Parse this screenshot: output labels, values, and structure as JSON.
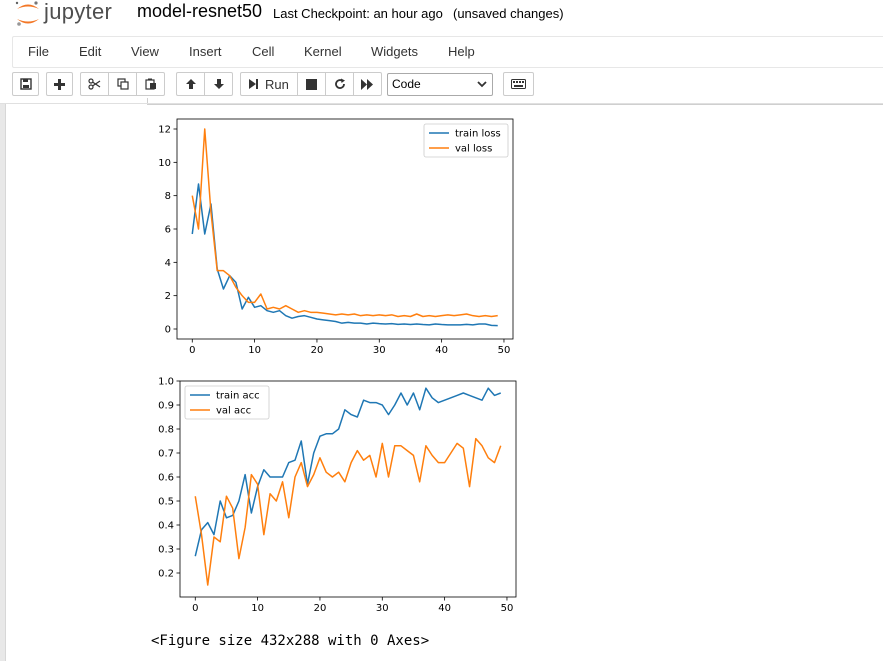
{
  "header": {
    "logo_text": "jupyter",
    "notebook_name": "model-resnet50",
    "checkpoint": "Last Checkpoint: an hour ago",
    "autosave": "(unsaved changes)"
  },
  "menu": [
    "File",
    "Edit",
    "View",
    "Insert",
    "Cell",
    "Kernel",
    "Widgets",
    "Help"
  ],
  "toolbar": {
    "run_label": "Run",
    "cell_type": "Code",
    "icons": [
      "save-icon",
      "plus-icon",
      "scissors-icon",
      "copy-icon",
      "paste-icon",
      "arrow-up-icon",
      "arrow-down-icon",
      "step-forward-icon",
      "stop-icon",
      "restart-icon",
      "fast-forward-icon",
      "keyboard-icon"
    ]
  },
  "output": {
    "figure_text": "<Figure size 432x288 with 0 Axes>"
  },
  "colors": {
    "series1": "#1f77b4",
    "series2": "#ff7f0e"
  },
  "chart_data": [
    {
      "type": "line",
      "legend_placement": "upper-right",
      "xlim": [
        -2.45,
        51.45
      ],
      "ylim": [
        -0.6,
        12.6
      ],
      "xticks": [
        0,
        10,
        20,
        30,
        40,
        50
      ],
      "yticks": [
        0,
        2,
        4,
        6,
        8,
        10,
        12
      ],
      "series": [
        {
          "name": "train loss",
          "x": [
            0,
            1,
            2,
            3,
            4,
            5,
            6,
            7,
            8,
            9,
            10,
            11,
            12,
            13,
            14,
            15,
            16,
            17,
            18,
            19,
            20,
            21,
            22,
            23,
            24,
            25,
            26,
            27,
            28,
            29,
            30,
            31,
            32,
            33,
            34,
            35,
            36,
            37,
            38,
            39,
            40,
            41,
            42,
            43,
            44,
            45,
            46,
            47,
            48,
            49
          ],
          "values": [
            5.7,
            8.7,
            5.7,
            7.5,
            3.6,
            2.4,
            3.2,
            2.8,
            1.2,
            1.9,
            1.3,
            1.4,
            1.1,
            1.0,
            1.1,
            0.8,
            0.65,
            0.75,
            0.8,
            0.7,
            0.6,
            0.55,
            0.5,
            0.45,
            0.35,
            0.4,
            0.35,
            0.35,
            0.3,
            0.35,
            0.32,
            0.3,
            0.32,
            0.28,
            0.3,
            0.27,
            0.3,
            0.27,
            0.25,
            0.3,
            0.27,
            0.25,
            0.25,
            0.25,
            0.28,
            0.25,
            0.3,
            0.3,
            0.22,
            0.2
          ]
        },
        {
          "name": "val loss",
          "x": [
            0,
            1,
            2,
            3,
            4,
            5,
            6,
            7,
            8,
            9,
            10,
            11,
            12,
            13,
            14,
            15,
            16,
            17,
            18,
            19,
            20,
            21,
            22,
            23,
            24,
            25,
            26,
            27,
            28,
            29,
            30,
            31,
            32,
            33,
            34,
            35,
            36,
            37,
            38,
            39,
            40,
            41,
            42,
            43,
            44,
            45,
            46,
            47,
            48,
            49
          ],
          "values": [
            8.0,
            6.0,
            12.0,
            7.0,
            3.5,
            3.5,
            3.2,
            2.5,
            2.0,
            1.6,
            1.6,
            2.1,
            1.2,
            1.3,
            1.2,
            1.4,
            1.2,
            1.0,
            1.1,
            1.0,
            1.0,
            0.95,
            0.9,
            0.85,
            0.9,
            0.85,
            0.9,
            0.8,
            0.85,
            0.8,
            0.85,
            0.8,
            0.85,
            0.75,
            0.8,
            0.75,
            0.9,
            0.75,
            0.8,
            0.75,
            0.8,
            0.85,
            0.8,
            0.85,
            0.9,
            0.8,
            0.75,
            0.8,
            0.75,
            0.8
          ]
        }
      ]
    },
    {
      "type": "line",
      "legend_placement": "upper-left",
      "xlim": [
        -2.45,
        51.45
      ],
      "ylim": [
        0.1,
        1.0
      ],
      "xticks": [
        0,
        10,
        20,
        30,
        40,
        50
      ],
      "yticks": [
        0.2,
        0.3,
        0.4,
        0.5,
        0.6,
        0.7,
        0.8,
        0.9,
        1.0
      ],
      "series": [
        {
          "name": "train acc",
          "x": [
            0,
            1,
            2,
            3,
            4,
            5,
            6,
            7,
            8,
            9,
            10,
            11,
            12,
            13,
            14,
            15,
            16,
            17,
            18,
            19,
            20,
            21,
            22,
            23,
            24,
            25,
            26,
            27,
            28,
            29,
            30,
            31,
            32,
            33,
            34,
            35,
            36,
            37,
            38,
            39,
            40,
            41,
            42,
            43,
            44,
            45,
            46,
            47,
            48,
            49
          ],
          "values": [
            0.27,
            0.38,
            0.41,
            0.36,
            0.5,
            0.43,
            0.44,
            0.5,
            0.61,
            0.45,
            0.56,
            0.63,
            0.6,
            0.6,
            0.6,
            0.66,
            0.67,
            0.75,
            0.57,
            0.7,
            0.77,
            0.78,
            0.78,
            0.8,
            0.88,
            0.86,
            0.85,
            0.92,
            0.91,
            0.91,
            0.9,
            0.86,
            0.9,
            0.95,
            0.9,
            0.95,
            0.88,
            0.97,
            0.93,
            0.91,
            0.92,
            0.93,
            0.94,
            0.95,
            0.94,
            0.93,
            0.92,
            0.97,
            0.94,
            0.95
          ]
        },
        {
          "name": "val acc",
          "x": [
            0,
            1,
            2,
            3,
            4,
            5,
            6,
            7,
            8,
            9,
            10,
            11,
            12,
            13,
            14,
            15,
            16,
            17,
            18,
            19,
            20,
            21,
            22,
            23,
            24,
            25,
            26,
            27,
            28,
            29,
            30,
            31,
            32,
            33,
            34,
            35,
            36,
            37,
            38,
            39,
            40,
            41,
            42,
            43,
            44,
            45,
            46,
            47,
            48,
            49
          ],
          "values": [
            0.52,
            0.36,
            0.15,
            0.35,
            0.33,
            0.52,
            0.47,
            0.26,
            0.39,
            0.61,
            0.57,
            0.36,
            0.53,
            0.5,
            0.58,
            0.43,
            0.6,
            0.66,
            0.56,
            0.61,
            0.68,
            0.62,
            0.6,
            0.62,
            0.58,
            0.66,
            0.71,
            0.67,
            0.69,
            0.6,
            0.74,
            0.6,
            0.73,
            0.73,
            0.71,
            0.69,
            0.58,
            0.73,
            0.69,
            0.66,
            0.66,
            0.7,
            0.74,
            0.72,
            0.56,
            0.76,
            0.73,
            0.68,
            0.66,
            0.73
          ]
        }
      ]
    }
  ]
}
